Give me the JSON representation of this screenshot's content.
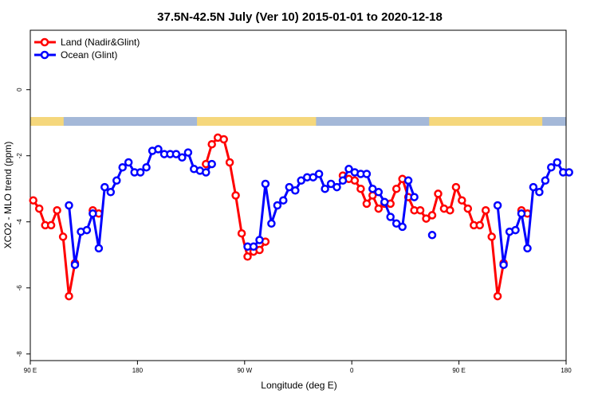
{
  "chart_data": {
    "type": "line",
    "title": "37.5N-42.5N July (Ver 10)   2015-01-01 to 2020-12-18",
    "xlabel": "Longitude (deg E)",
    "ylabel": "XCO2 - MLO trend (ppm)",
    "x_tick_labels": [
      "90 E",
      "180",
      "90 W",
      "0",
      "90 E",
      "180"
    ],
    "y_ticks": [
      0,
      -2,
      -4,
      -6,
      -8
    ],
    "ylim": [
      -8.2,
      1.8
    ],
    "xlim": [
      90,
      540
    ],
    "grid": false,
    "legend_position": "top-left",
    "colors": {
      "land": "#ff0000",
      "ocean": "#0000ff",
      "map_land": "#f5d77c",
      "map_ocean": "#a4b8d8"
    },
    "series": [
      {
        "name": "Land (Nadir&Glint)",
        "color": "#ff0000",
        "segments": [
          [
            [
              92.5,
              -3.35
            ],
            [
              97.5,
              -3.6
            ],
            [
              102.5,
              -4.1
            ],
            [
              107.5,
              -4.1
            ],
            [
              112.5,
              -3.65
            ],
            [
              117.5,
              -4.45
            ],
            [
              122.5,
              -6.25
            ],
            [
              127.5,
              -5.25
            ]
          ],
          [
            [
              142.5,
              -3.65
            ],
            [
              147.5,
              -3.75
            ]
          ],
          [
            [
              237.5,
              -2.25
            ],
            [
              242.5,
              -1.65
            ],
            [
              247.5,
              -1.45
            ],
            [
              252.5,
              -1.5
            ],
            [
              257.5,
              -2.2
            ],
            [
              262.5,
              -3.2
            ],
            [
              267.5,
              -4.35
            ],
            [
              272.5,
              -5.05
            ],
            [
              277.5,
              -4.9
            ],
            [
              282.5,
              -4.85
            ],
            [
              287.5,
              -4.6
            ]
          ],
          [
            [
              352.5,
              -2.6
            ],
            [
              357.5,
              -2.7
            ],
            [
              362.5,
              -2.75
            ],
            [
              367.5,
              -3.0
            ],
            [
              372.5,
              -3.45
            ],
            [
              377.5,
              -3.2
            ],
            [
              382.5,
              -3.6
            ],
            [
              387.5,
              -3.45
            ],
            [
              392.5,
              -3.45
            ],
            [
              397.5,
              -3.0
            ],
            [
              402.5,
              -2.7
            ],
            [
              407.5,
              -3.25
            ],
            [
              412.5,
              -3.65
            ],
            [
              417.5,
              -3.65
            ],
            [
              422.5,
              -3.9
            ],
            [
              427.5,
              -3.8
            ],
            [
              432.5,
              -3.15
            ],
            [
              437.5,
              -3.6
            ],
            [
              442.5,
              -3.65
            ],
            [
              447.5,
              -2.95
            ],
            [
              452.5,
              -3.35
            ],
            [
              457.5,
              -3.6
            ],
            [
              462.5,
              -4.1
            ],
            [
              467.5,
              -4.1
            ],
            [
              472.5,
              -3.65
            ],
            [
              477.5,
              -4.45
            ],
            [
              482.5,
              -6.25
            ],
            [
              487.5,
              -5.25
            ]
          ],
          [
            [
              502.5,
              -3.65
            ],
            [
              507.5,
              -3.75
            ]
          ]
        ]
      },
      {
        "name": "Ocean (Glint)",
        "color": "#0000ff",
        "segments": [
          [
            [
              122.5,
              -3.5
            ],
            [
              127.5,
              -5.3
            ],
            [
              132.5,
              -4.3
            ],
            [
              137.5,
              -4.25
            ],
            [
              142.5,
              -3.75
            ],
            [
              147.5,
              -4.8
            ],
            [
              152.5,
              -2.95
            ],
            [
              157.5,
              -3.1
            ],
            [
              162.5,
              -2.75
            ],
            [
              167.5,
              -2.35
            ],
            [
              172.5,
              -2.2
            ],
            [
              177.5,
              -2.5
            ],
            [
              182.5,
              -2.5
            ],
            [
              187.5,
              -2.35
            ],
            [
              192.5,
              -1.85
            ],
            [
              197.5,
              -1.8
            ],
            [
              202.5,
              -1.95
            ],
            [
              207.5,
              -1.95
            ],
            [
              212.5,
              -1.95
            ],
            [
              217.5,
              -2.05
            ],
            [
              222.5,
              -1.9
            ],
            [
              227.5,
              -2.4
            ],
            [
              232.5,
              -2.45
            ],
            [
              237.5,
              -2.5
            ],
            [
              242.5,
              -2.25
            ]
          ],
          [
            [
              272.5,
              -4.75
            ],
            [
              277.5,
              -4.75
            ],
            [
              282.5,
              -4.55
            ],
            [
              287.5,
              -2.85
            ],
            [
              292.5,
              -4.05
            ],
            [
              297.5,
              -3.5
            ],
            [
              302.5,
              -3.35
            ],
            [
              307.5,
              -2.95
            ],
            [
              312.5,
              -3.05
            ],
            [
              317.5,
              -2.75
            ],
            [
              322.5,
              -2.65
            ],
            [
              327.5,
              -2.65
            ],
            [
              332.5,
              -2.55
            ],
            [
              337.5,
              -3.0
            ],
            [
              342.5,
              -2.85
            ],
            [
              347.5,
              -2.95
            ],
            [
              352.5,
              -2.75
            ],
            [
              357.5,
              -2.4
            ],
            [
              362.5,
              -2.5
            ],
            [
              367.5,
              -2.55
            ],
            [
              372.5,
              -2.55
            ],
            [
              377.5,
              -3.0
            ],
            [
              382.5,
              -3.1
            ],
            [
              387.5,
              -3.4
            ],
            [
              392.5,
              -3.85
            ],
            [
              397.5,
              -4.05
            ],
            [
              402.5,
              -4.15
            ],
            [
              407.5,
              -2.75
            ],
            [
              412.5,
              -3.25
            ]
          ],
          [
            [
              427.5,
              -4.4
            ]
          ],
          [
            [
              482.5,
              -3.5
            ],
            [
              487.5,
              -5.3
            ],
            [
              492.5,
              -4.3
            ],
            [
              497.5,
              -4.25
            ],
            [
              502.5,
              -3.75
            ],
            [
              507.5,
              -4.8
            ],
            [
              512.5,
              -2.95
            ],
            [
              517.5,
              -3.1
            ],
            [
              522.5,
              -2.75
            ],
            [
              527.5,
              -2.35
            ],
            [
              532.5,
              -2.2
            ],
            [
              537.5,
              -2.5
            ],
            [
              542.5,
              -2.5
            ]
          ]
        ]
      }
    ]
  }
}
